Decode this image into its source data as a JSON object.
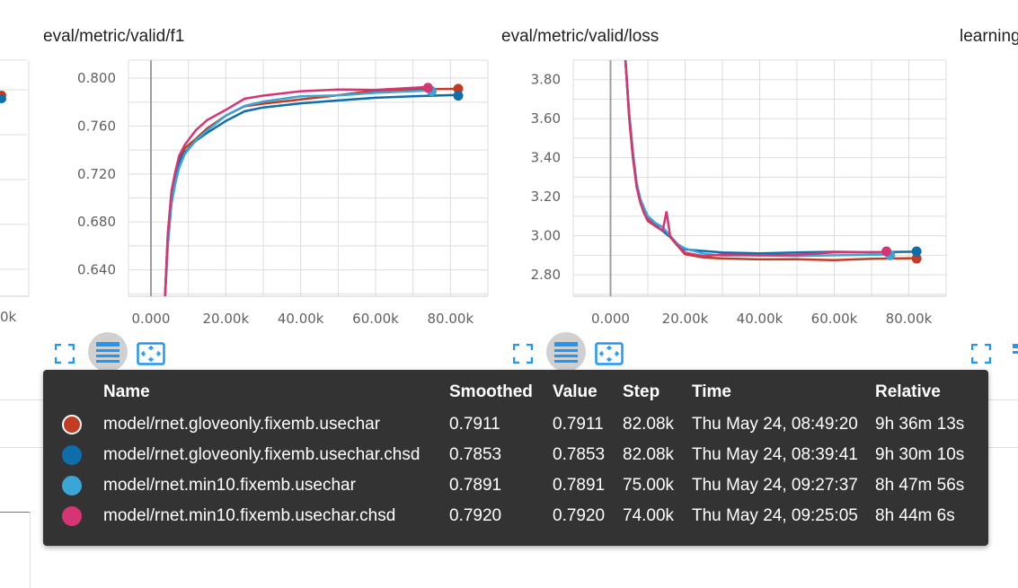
{
  "charts": [
    {
      "title": "eval/metric/valid/f1",
      "chart_data": {
        "type": "line",
        "title": "eval/metric/valid/f1",
        "xlim": [
          -6000,
          90000
        ],
        "ylim": [
          0.618,
          0.815
        ],
        "x_ticks": [
          "0.000",
          "20.00k",
          "40.00k",
          "60.00k",
          "80.00k"
        ],
        "x_tick_values": [
          0,
          20000,
          40000,
          60000,
          80000
        ],
        "y_ticks": [
          "0.800",
          "0.760",
          "0.720",
          "0.680",
          "0.640"
        ],
        "y_tick_values": [
          0.8,
          0.76,
          0.72,
          0.68,
          0.64
        ],
        "grid": true,
        "series": [
          {
            "color": "#c23b22",
            "x": [
              3500,
              4500,
              5500,
              6500,
              7500,
              9000,
              12000,
              15000,
              20000,
              25000,
              30000,
              40000,
              50000,
              60000,
              70000,
              82080
            ],
            "y": [
              0.6,
              0.67,
              0.705,
              0.72,
              0.732,
              0.742,
              0.75,
              0.758,
              0.768,
              0.776,
              0.779,
              0.783,
              0.786,
              0.789,
              0.79,
              0.7911
            ]
          },
          {
            "color": "#0d6eaa",
            "x": [
              3500,
              4500,
              5500,
              6500,
              7500,
              9000,
              12000,
              15000,
              20000,
              25000,
              30000,
              40000,
              50000,
              60000,
              70000,
              82080
            ],
            "y": [
              0.6,
              0.668,
              0.703,
              0.718,
              0.73,
              0.738,
              0.748,
              0.755,
              0.765,
              0.773,
              0.776,
              0.779,
              0.781,
              0.783,
              0.784,
              0.7853
            ]
          },
          {
            "color": "#3aa6d6",
            "x": [
              3500,
              4500,
              5500,
              6500,
              7500,
              9000,
              12000,
              15000,
              20000,
              25000,
              30000,
              40000,
              50000,
              60000,
              75000
            ],
            "y": [
              0.6,
              0.66,
              0.695,
              0.712,
              0.725,
              0.736,
              0.748,
              0.757,
              0.768,
              0.777,
              0.781,
              0.784,
              0.786,
              0.788,
              0.7891
            ]
          },
          {
            "color": "#d63574",
            "x": [
              3500,
              4500,
              5500,
              6500,
              7500,
              9000,
              12000,
              15000,
              20000,
              25000,
              30000,
              40000,
              50000,
              60000,
              74000
            ],
            "y": [
              0.6,
              0.67,
              0.706,
              0.722,
              0.735,
              0.745,
              0.756,
              0.765,
              0.774,
              0.782,
              0.786,
              0.789,
              0.79,
              0.791,
              0.792
            ]
          }
        ]
      }
    },
    {
      "title": "eval/metric/valid/loss",
      "chart_data": {
        "type": "line",
        "title": "eval/metric/valid/loss",
        "xlim": [
          -10000,
          90000
        ],
        "ylim": [
          2.69,
          3.9
        ],
        "x_ticks": [
          "0.000",
          "20.00k",
          "40.00k",
          "60.00k",
          "80.00k"
        ],
        "x_tick_values": [
          0,
          20000,
          40000,
          60000,
          80000
        ],
        "y_ticks": [
          "3.80",
          "3.60",
          "3.40",
          "3.20",
          "3.00",
          "2.80"
        ],
        "y_tick_values": [
          3.8,
          3.6,
          3.4,
          3.2,
          3.0,
          2.8
        ],
        "grid": true,
        "series": [
          {
            "color": "#c23b22",
            "x": [
              4000,
              5000,
              6000,
              7000,
              8000,
              9000,
              10000,
              12000,
              14000,
              16000,
              18000,
              20000,
              25000,
              30000,
              40000,
              50000,
              60000,
              70000,
              82080
            ],
            "y": [
              3.9,
              3.6,
              3.4,
              3.25,
              3.17,
              3.12,
              3.08,
              3.05,
              3.02,
              2.99,
              2.95,
              2.91,
              2.89,
              2.88,
              2.875,
              2.88,
              2.88,
              2.885,
              2.883
            ]
          },
          {
            "color": "#0d6eaa",
            "x": [
              4000,
              5000,
              6000,
              7000,
              8000,
              9000,
              10000,
              12000,
              14000,
              16000,
              18000,
              20000,
              25000,
              30000,
              40000,
              50000,
              60000,
              70000,
              82080
            ],
            "y": [
              3.9,
              3.62,
              3.42,
              3.26,
              3.18,
              3.13,
              3.09,
              3.06,
              3.03,
              3.0,
              2.96,
              2.93,
              2.92,
              2.91,
              2.905,
              2.91,
              2.915,
              2.915,
              2.92
            ]
          },
          {
            "color": "#3aa6d6",
            "x": [
              4000,
              5000,
              6000,
              7000,
              8000,
              9000,
              10000,
              12000,
              14000,
              16000,
              18000,
              20000,
              25000,
              30000,
              40000,
              50000,
              60000,
              75000
            ],
            "y": [
              3.9,
              3.63,
              3.43,
              3.27,
              3.19,
              3.14,
              3.1,
              3.07,
              3.04,
              3.0,
              2.96,
              2.93,
              2.91,
              2.9,
              2.895,
              2.9,
              2.9,
              2.9
            ]
          },
          {
            "color": "#d63574",
            "x": [
              4000,
              5000,
              6000,
              7000,
              8000,
              9000,
              10000,
              12000,
              14000,
              15000,
              16000,
              18000,
              20000,
              25000,
              30000,
              40000,
              50000,
              60000,
              74000
            ],
            "y": [
              3.9,
              3.61,
              3.41,
              3.25,
              3.17,
              3.12,
              3.08,
              3.05,
              3.03,
              3.12,
              3.0,
              2.95,
              2.91,
              2.9,
              2.9,
              2.9,
              2.905,
              2.91,
              2.92
            ]
          }
        ]
      }
    }
  ],
  "partial_right_title": "learning",
  "partial_left_tick": "0k",
  "tooltip": {
    "headers": {
      "name": "Name",
      "smoothed": "Smoothed",
      "value": "Value",
      "step": "Step",
      "time": "Time",
      "relative": "Relative"
    },
    "rows": [
      {
        "color": "#c23b22",
        "name": "model/rnet.gloveonly.fixemb.usechar",
        "smoothed": "0.7911",
        "value": "0.7911",
        "step": "82.08k",
        "time": "Thu May 24, 08:49:20",
        "relative": "9h 36m 13s"
      },
      {
        "color": "#0d6eaa",
        "name": "model/rnet.gloveonly.fixemb.usechar.chsd",
        "smoothed": "0.7853",
        "value": "0.7853",
        "step": "82.08k",
        "time": "Thu May 24, 08:39:41",
        "relative": "9h 30m 10s"
      },
      {
        "color": "#3aa6d6",
        "name": "model/rnet.min10.fixemb.usechar",
        "smoothed": "0.7891",
        "value": "0.7891",
        "step": "75.00k",
        "time": "Thu May 24, 09:27:37",
        "relative": "8h 47m 56s"
      },
      {
        "color": "#d63574",
        "name": "model/rnet.min10.fixemb.usechar.chsd",
        "smoothed": "0.7920",
        "value": "0.7920",
        "step": "74.00k",
        "time": "Thu May 24, 09:25:05",
        "relative": "8h 44m 6s"
      }
    ]
  },
  "icons": {
    "expand": "fullscreen-icon",
    "data": "list-icon",
    "fit": "fit-domain-icon"
  },
  "colors": {
    "accent": "#2196f3",
    "tooltip_bg": "#333333",
    "grid": "#dddddd"
  }
}
